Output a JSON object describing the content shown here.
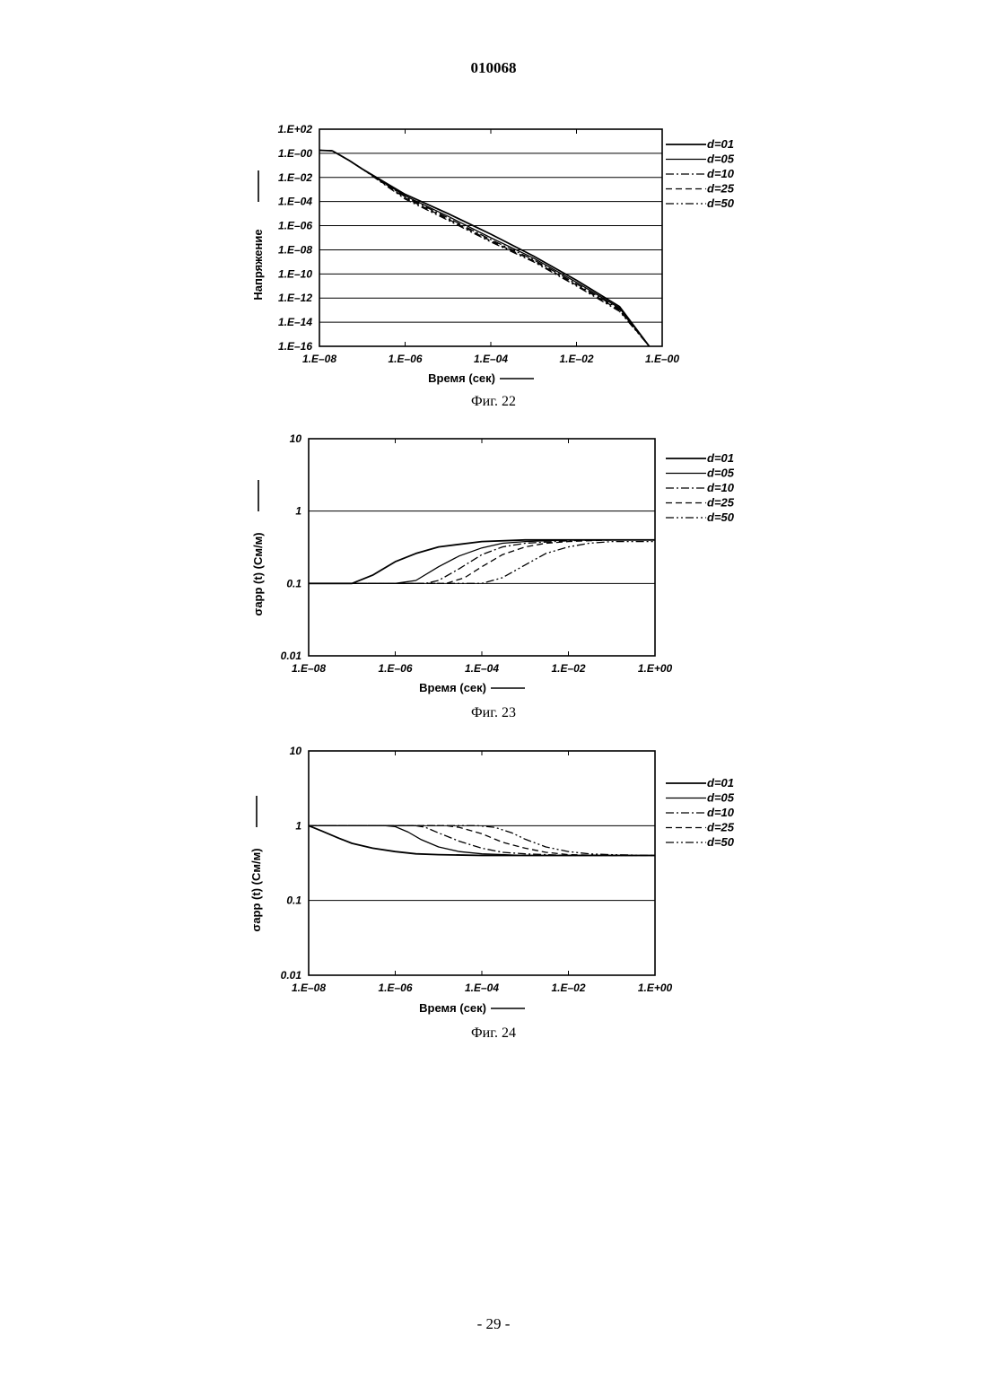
{
  "header": {
    "doc_number": "010068"
  },
  "footer": {
    "page_number": "- 29 -"
  },
  "chart_data": [
    {
      "id": "fig22",
      "type": "line",
      "caption": "Фиг. 22",
      "xlabel": "Время (сек)",
      "ylabel": "Напряжение",
      "xscale": "log",
      "yscale": "log",
      "xlim": [
        1e-08,
        1
      ],
      "ylim": [
        1e-16,
        100
      ],
      "xtick_values": [
        1e-08,
        1e-06,
        0.0001,
        0.01,
        1
      ],
      "xtick_labels": [
        "1.E–08",
        "1.E–06",
        "1.E–04",
        "1.E–02",
        "1.E–00"
      ],
      "ytick_values": [
        100,
        1,
        0.01,
        0.0001,
        1e-06,
        1e-08,
        1e-10,
        1e-12,
        1e-14,
        1e-16
      ],
      "ytick_labels": [
        "1.E+02",
        "1.E–00",
        "1.E–02",
        "1.E–04",
        "1.E–06",
        "1.E–08",
        "1.E–10",
        "1.E–12",
        "1.E–14",
        "1.E–16"
      ],
      "grid": "horizontal",
      "legend_position": "right",
      "series": [
        {
          "name": "d=01",
          "style": "solid",
          "x": [
            1e-08,
            2e-08,
            5e-08,
            1e-07,
            1e-06,
            1e-05,
            0.0001,
            0.001,
            0.01,
            0.1,
            0.5
          ],
          "y": [
            1.8,
            1.6,
            0.25,
            0.05,
            0.0004,
            1e-05,
            2e-07,
            3e-09,
            3e-11,
            2e-13,
            1e-16
          ]
        },
        {
          "name": "d=05",
          "style": "solid",
          "x": [
            1e-08,
            2e-08,
            5e-08,
            1e-07,
            1e-06,
            1e-05,
            0.0001,
            0.001,
            0.01,
            0.1,
            0.5
          ],
          "y": [
            1.8,
            1.6,
            0.25,
            0.05,
            0.0003,
            6e-06,
            1e-07,
            2e-09,
            2e-11,
            1.5e-13,
            1e-16
          ]
        },
        {
          "name": "d=10",
          "style": "dashdot",
          "x": [
            1e-08,
            2e-08,
            5e-08,
            1e-07,
            1e-06,
            1e-05,
            0.0001,
            0.001,
            0.01,
            0.1,
            0.5
          ],
          "y": [
            1.8,
            1.6,
            0.25,
            0.05,
            0.00025,
            4.5e-06,
            7e-08,
            1.5e-09,
            1.5e-11,
            1.2e-13,
            1e-16
          ]
        },
        {
          "name": "d=25",
          "style": "dashed",
          "x": [
            1e-08,
            2e-08,
            5e-08,
            1e-07,
            1e-06,
            1e-05,
            0.0001,
            0.001,
            0.01,
            0.1,
            0.5
          ],
          "y": [
            1.8,
            1.6,
            0.25,
            0.05,
            0.0002,
            3.5e-06,
            5.5e-08,
            1.2e-09,
            1.2e-11,
            1e-13,
            1e-16
          ]
        },
        {
          "name": "d=50",
          "style": "dashdotdot",
          "x": [
            1e-08,
            2e-08,
            5e-08,
            1e-07,
            1e-06,
            1e-05,
            0.0001,
            0.001,
            0.01,
            0.1,
            0.5
          ],
          "y": [
            1.8,
            1.6,
            0.25,
            0.05,
            0.00016,
            2.8e-06,
            4.5e-08,
            1e-09,
            1e-11,
            8e-14,
            1e-16
          ]
        }
      ]
    },
    {
      "id": "fig23",
      "type": "line",
      "caption": "Фиг. 23",
      "xlabel": "Время (сек)",
      "ylabel": "σapp (t) (См/м)",
      "xscale": "log",
      "yscale": "log",
      "xlim": [
        1e-08,
        1
      ],
      "ylim": [
        0.01,
        10
      ],
      "xtick_values": [
        1e-08,
        1e-06,
        0.0001,
        0.01,
        1
      ],
      "xtick_labels": [
        "1.E–08",
        "1.E–06",
        "1.E–04",
        "1.E–02",
        "1.E+00"
      ],
      "ytick_values": [
        10,
        1,
        0.1,
        0.01
      ],
      "ytick_labels": [
        "10",
        "1",
        "0.1",
        "0.01"
      ],
      "grid": "horizontal",
      "legend_position": "right",
      "series": [
        {
          "name": "d=01",
          "style": "solid",
          "x": [
            1e-08,
            1e-07,
            3e-07,
            1e-06,
            3e-06,
            1e-05,
            0.0001,
            0.001,
            0.01,
            1
          ],
          "y": [
            0.1,
            0.1,
            0.13,
            0.2,
            0.26,
            0.32,
            0.38,
            0.4,
            0.4,
            0.4
          ]
        },
        {
          "name": "d=05",
          "style": "solid",
          "x": [
            1e-08,
            1e-06,
            3e-06,
            1e-05,
            3e-05,
            0.0001,
            0.0003,
            0.001,
            0.01,
            1
          ],
          "y": [
            0.1,
            0.1,
            0.11,
            0.17,
            0.24,
            0.31,
            0.36,
            0.38,
            0.4,
            0.4
          ]
        },
        {
          "name": "d=10",
          "style": "dashdot",
          "x": [
            1e-08,
            5e-06,
            1e-05,
            3e-05,
            0.0001,
            0.0003,
            0.001,
            0.01,
            0.1,
            1
          ],
          "y": [
            0.1,
            0.1,
            0.11,
            0.16,
            0.25,
            0.32,
            0.36,
            0.39,
            0.4,
            0.4
          ]
        },
        {
          "name": "d=25",
          "style": "dashed",
          "x": [
            1e-08,
            1.5e-05,
            4e-05,
            0.0001,
            0.0003,
            0.001,
            0.003,
            0.01,
            0.1,
            1
          ],
          "y": [
            0.1,
            0.1,
            0.12,
            0.17,
            0.25,
            0.32,
            0.36,
            0.38,
            0.4,
            0.4
          ]
        },
        {
          "name": "d=50",
          "style": "dashdotdot",
          "x": [
            1e-08,
            0.0001,
            0.0003,
            0.001,
            0.003,
            0.01,
            0.03,
            0.1,
            1
          ],
          "y": [
            0.1,
            0.1,
            0.12,
            0.18,
            0.26,
            0.32,
            0.36,
            0.38,
            0.38
          ]
        }
      ]
    },
    {
      "id": "fig24",
      "type": "line",
      "caption": "Фиг. 24",
      "xlabel": "Время (сек)",
      "ylabel": "σapp (t) (См/м)",
      "xscale": "log",
      "yscale": "log",
      "xlim": [
        1e-08,
        1
      ],
      "ylim": [
        0.01,
        10
      ],
      "xtick_values": [
        1e-08,
        1e-06,
        0.0001,
        0.01,
        1
      ],
      "xtick_labels": [
        "1.E–08",
        "1.E–06",
        "1.E–04",
        "1.E–02",
        "1.E+00"
      ],
      "ytick_values": [
        10,
        1,
        0.1,
        0.01
      ],
      "ytick_labels": [
        "10",
        "1",
        "0.1",
        "0.01"
      ],
      "grid": "horizontal",
      "legend_position": "right",
      "series": [
        {
          "name": "d=01",
          "style": "solid",
          "x": [
            1e-08,
            2e-08,
            5e-08,
            1e-07,
            3e-07,
            1e-06,
            3e-06,
            1e-05,
            0.0001,
            1
          ],
          "y": [
            1,
            0.85,
            0.68,
            0.58,
            0.5,
            0.45,
            0.42,
            0.41,
            0.4,
            0.4
          ]
        },
        {
          "name": "d=05",
          "style": "solid",
          "x": [
            1e-08,
            6e-07,
            1e-06,
            2e-06,
            4e-06,
            1e-05,
            3e-05,
            0.0001,
            0.001,
            1
          ],
          "y": [
            1,
            1,
            0.97,
            0.82,
            0.65,
            0.52,
            0.45,
            0.42,
            0.4,
            0.4
          ]
        },
        {
          "name": "d=10",
          "style": "dashdot",
          "x": [
            1e-08,
            3e-06,
            5e-06,
            1e-05,
            3e-05,
            0.0001,
            0.0003,
            0.001,
            0.01,
            1
          ],
          "y": [
            1,
            1,
            0.95,
            0.8,
            0.62,
            0.5,
            0.44,
            0.42,
            0.4,
            0.4
          ]
        },
        {
          "name": "d=25",
          "style": "dashed",
          "x": [
            1e-08,
            1.5e-05,
            3e-05,
            0.0001,
            0.0003,
            0.001,
            0.003,
            0.01,
            0.1,
            1
          ],
          "y": [
            1,
            1,
            0.95,
            0.78,
            0.6,
            0.5,
            0.44,
            0.41,
            0.4,
            0.4
          ]
        },
        {
          "name": "d=50",
          "style": "dashdotdot",
          "x": [
            1e-08,
            8e-05,
            0.0002,
            0.0005,
            0.001,
            0.003,
            0.01,
            0.03,
            0.1,
            1
          ],
          "y": [
            1,
            1,
            0.95,
            0.8,
            0.66,
            0.52,
            0.45,
            0.42,
            0.41,
            0.4
          ]
        }
      ]
    }
  ]
}
